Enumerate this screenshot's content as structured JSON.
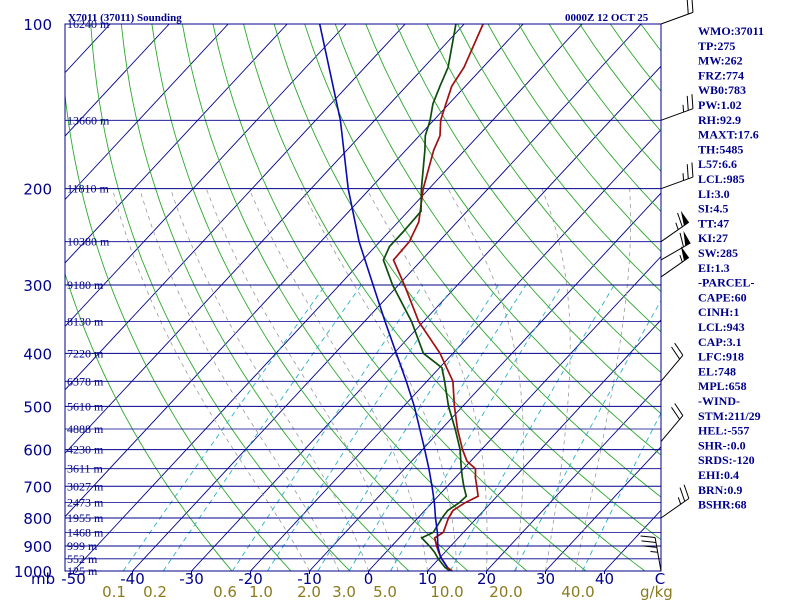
{
  "header": {
    "title": "X7011 (37011) Sounding",
    "time": "0000Z 12 OCT 25"
  },
  "sidebar": [
    "WMO:37011",
    "TP:275",
    "MW:262",
    "FRZ:774",
    "WB0:783",
    "PW:1.02",
    "RH:92.9",
    "MAXT:17.6",
    "TH:5485",
    "L57:6.6",
    "LCL:985",
    "LI:3.0",
    "SI:4.5",
    "TT:47",
    "KI:27",
    "SW:285",
    "EI:1.3",
    "-PARCEL-",
    "CAPE:60",
    "CINH:1",
    "LCL:943",
    "CAP:3.1",
    "LFC:918",
    "EL:748",
    "MPL:658",
    "-WIND-",
    "STM:211/29",
    "HEL:-557",
    "SHR-:0.0",
    "SRDS:-120",
    "EHI:0.4",
    "BRN:0.9",
    "BSHR:68"
  ],
  "colors": {
    "isobar": "#00008b",
    "isotherm": "#00008b",
    "dry_adiabat": "#2ea82e",
    "moist_adiabat": "#9a9a9a",
    "mixing_ratio": "#2ab0c8",
    "temperature": "#a01010",
    "dewpoint": "#0d4d0d",
    "parcel": "#0a0ab0",
    "frame": "#00008b",
    "mr_label": "#8b7a1e"
  },
  "chart_data": {
    "type": "skew-t",
    "pressure_unit": "mb",
    "temperature_unit": "C",
    "p_range": [
      100,
      1000
    ],
    "x_axis": {
      "ticks": [
        -50,
        -40,
        -30,
        -20,
        -10,
        0,
        10,
        20,
        30,
        40
      ],
      "tick_labels": [
        "-50",
        "-40",
        "-30",
        "-20",
        "-10",
        "0",
        "10",
        "20",
        "30",
        "40"
      ],
      "end_label": "C"
    },
    "pressure_ticks": [
      100,
      200,
      300,
      400,
      500,
      600,
      700,
      800,
      900,
      1000
    ],
    "pressure_labels": [
      "100",
      "200",
      "300",
      "400",
      "500",
      "600",
      "700",
      "800",
      "900",
      "1000"
    ],
    "height_levels": [
      {
        "p": 100,
        "label": "16240 m"
      },
      {
        "p": 150,
        "label": "13660 m"
      },
      {
        "p": 200,
        "label": "11810 m"
      },
      {
        "p": 250,
        "label": "10380 m"
      },
      {
        "p": 300,
        "label": "9180 m"
      },
      {
        "p": 350,
        "label": "8130 m"
      },
      {
        "p": 400,
        "label": "7220 m"
      },
      {
        "p": 450,
        "label": "6378 m"
      },
      {
        "p": 500,
        "label": "5610 m"
      },
      {
        "p": 550,
        "label": "4888 m"
      },
      {
        "p": 600,
        "label": "4230 m"
      },
      {
        "p": 650,
        "label": "3611 m"
      },
      {
        "p": 700,
        "label": "3027 m"
      },
      {
        "p": 750,
        "label": "2473 m"
      },
      {
        "p": 800,
        "label": "1955 m"
      },
      {
        "p": 850,
        "label": "1468 m"
      },
      {
        "p": 900,
        "label": "999 m"
      },
      {
        "p": 950,
        "label": "552 m"
      },
      {
        "p": 1000,
        "label": "125 m"
      }
    ],
    "mixing_ratio_lines": [
      0.1,
      0.2,
      0.6,
      1.0,
      2.0,
      3.0,
      5.0,
      10.0,
      20.0,
      40.0
    ],
    "mixing_ratio_labels": [
      "0.1",
      "0.2",
      "0.6",
      "1.0",
      "2.0",
      "3.0",
      "5.0",
      "10.0",
      "20.0",
      "40.0"
    ],
    "mixing_ratio_unit": "g/kg",
    "dry_adiabats_K": [
      250,
      260,
      270,
      280,
      290,
      300,
      310,
      320,
      330,
      340,
      350,
      360,
      370,
      380,
      390,
      400,
      410,
      420,
      430,
      440,
      450,
      460,
      470,
      480,
      490,
      500,
      510,
      520,
      530
    ],
    "moist_adiabats_C": [
      -10,
      -5,
      0,
      5,
      10,
      15,
      20,
      25,
      30,
      35
    ],
    "series": [
      {
        "name": "Temperature",
        "points": [
          [
            1000,
            14.2
          ],
          [
            985,
            12.8
          ],
          [
            950,
            10.5
          ],
          [
            925,
            9.0
          ],
          [
            900,
            7.6
          ],
          [
            870,
            6.0
          ],
          [
            850,
            6.6
          ],
          [
            800,
            5.2
          ],
          [
            775,
            4.8
          ],
          [
            750,
            5.6
          ],
          [
            730,
            6.8
          ],
          [
            700,
            5.0
          ],
          [
            675,
            3.4
          ],
          [
            650,
            2.0
          ],
          [
            630,
            -0.6
          ],
          [
            600,
            -3.2
          ],
          [
            550,
            -7.3
          ],
          [
            500,
            -11.4
          ],
          [
            450,
            -15.6
          ],
          [
            400,
            -22.2
          ],
          [
            350,
            -30.8
          ],
          [
            300,
            -39.0
          ],
          [
            270,
            -44.8
          ],
          [
            250,
            -45.0
          ],
          [
            230,
            -46.5
          ],
          [
            200,
            -51.0
          ],
          [
            170,
            -55.3
          ],
          [
            160,
            -56.5
          ],
          [
            150,
            -58.8
          ],
          [
            140,
            -60.5
          ],
          [
            130,
            -62.3
          ],
          [
            120,
            -63.2
          ],
          [
            100,
            -66.8
          ]
        ]
      },
      {
        "name": "Dewpoint",
        "points": [
          [
            1000,
            13.8
          ],
          [
            985,
            12.4
          ],
          [
            950,
            9.9
          ],
          [
            925,
            8.3
          ],
          [
            900,
            6.4
          ],
          [
            870,
            3.8
          ],
          [
            850,
            4.9
          ],
          [
            800,
            4.1
          ],
          [
            775,
            3.9
          ],
          [
            750,
            4.6
          ],
          [
            730,
            4.8
          ],
          [
            700,
            2.8
          ],
          [
            675,
            1.2
          ],
          [
            650,
            -0.4
          ],
          [
            600,
            -3.6
          ],
          [
            550,
            -7.7
          ],
          [
            500,
            -12.4
          ],
          [
            450,
            -17.0
          ],
          [
            425,
            -19.6
          ],
          [
            400,
            -25.0
          ],
          [
            350,
            -32.0
          ],
          [
            300,
            -41.0
          ],
          [
            270,
            -46.5
          ],
          [
            255,
            -47.6
          ],
          [
            240,
            -47.6
          ],
          [
            220,
            -47.8
          ],
          [
            200,
            -51.3
          ],
          [
            170,
            -56.8
          ],
          [
            160,
            -59.0
          ],
          [
            150,
            -60.6
          ],
          [
            140,
            -62.7
          ],
          [
            130,
            -64.3
          ],
          [
            120,
            -65.9
          ],
          [
            100,
            -71.4
          ]
        ]
      },
      {
        "name": "Parcel",
        "points": [
          [
            985,
            12.8
          ],
          [
            943,
            10.0
          ],
          [
            900,
            7.8
          ],
          [
            850,
            5.6
          ],
          [
            800,
            3.0
          ],
          [
            750,
            0.4
          ],
          [
            700,
            -2.6
          ],
          [
            650,
            -5.9
          ],
          [
            600,
            -9.6
          ],
          [
            550,
            -13.7
          ],
          [
            500,
            -18.2
          ],
          [
            450,
            -23.5
          ],
          [
            400,
            -29.6
          ],
          [
            350,
            -36.5
          ],
          [
            300,
            -44.3
          ],
          [
            250,
            -53.5
          ],
          [
            200,
            -63.7
          ],
          [
            150,
            -75.8
          ],
          [
            100,
            -94.5
          ]
        ]
      }
    ],
    "wind_barbs": [
      {
        "p": 100,
        "dir": 250,
        "kt": 20
      },
      {
        "p": 150,
        "dir": 250,
        "kt": 25
      },
      {
        "p": 200,
        "dir": 250,
        "kt": 25
      },
      {
        "p": 250,
        "dir": 235,
        "kt": 65
      },
      {
        "p": 270,
        "dir": 240,
        "kt": 60
      },
      {
        "p": 290,
        "dir": 235,
        "kt": 55
      },
      {
        "p": 450,
        "dir": 220,
        "kt": 20
      },
      {
        "p": 580,
        "dir": 220,
        "kt": 20
      },
      {
        "p": 800,
        "dir": 235,
        "kt": 25
      },
      {
        "p": 1000,
        "dir": 170,
        "kt": 35
      }
    ]
  }
}
